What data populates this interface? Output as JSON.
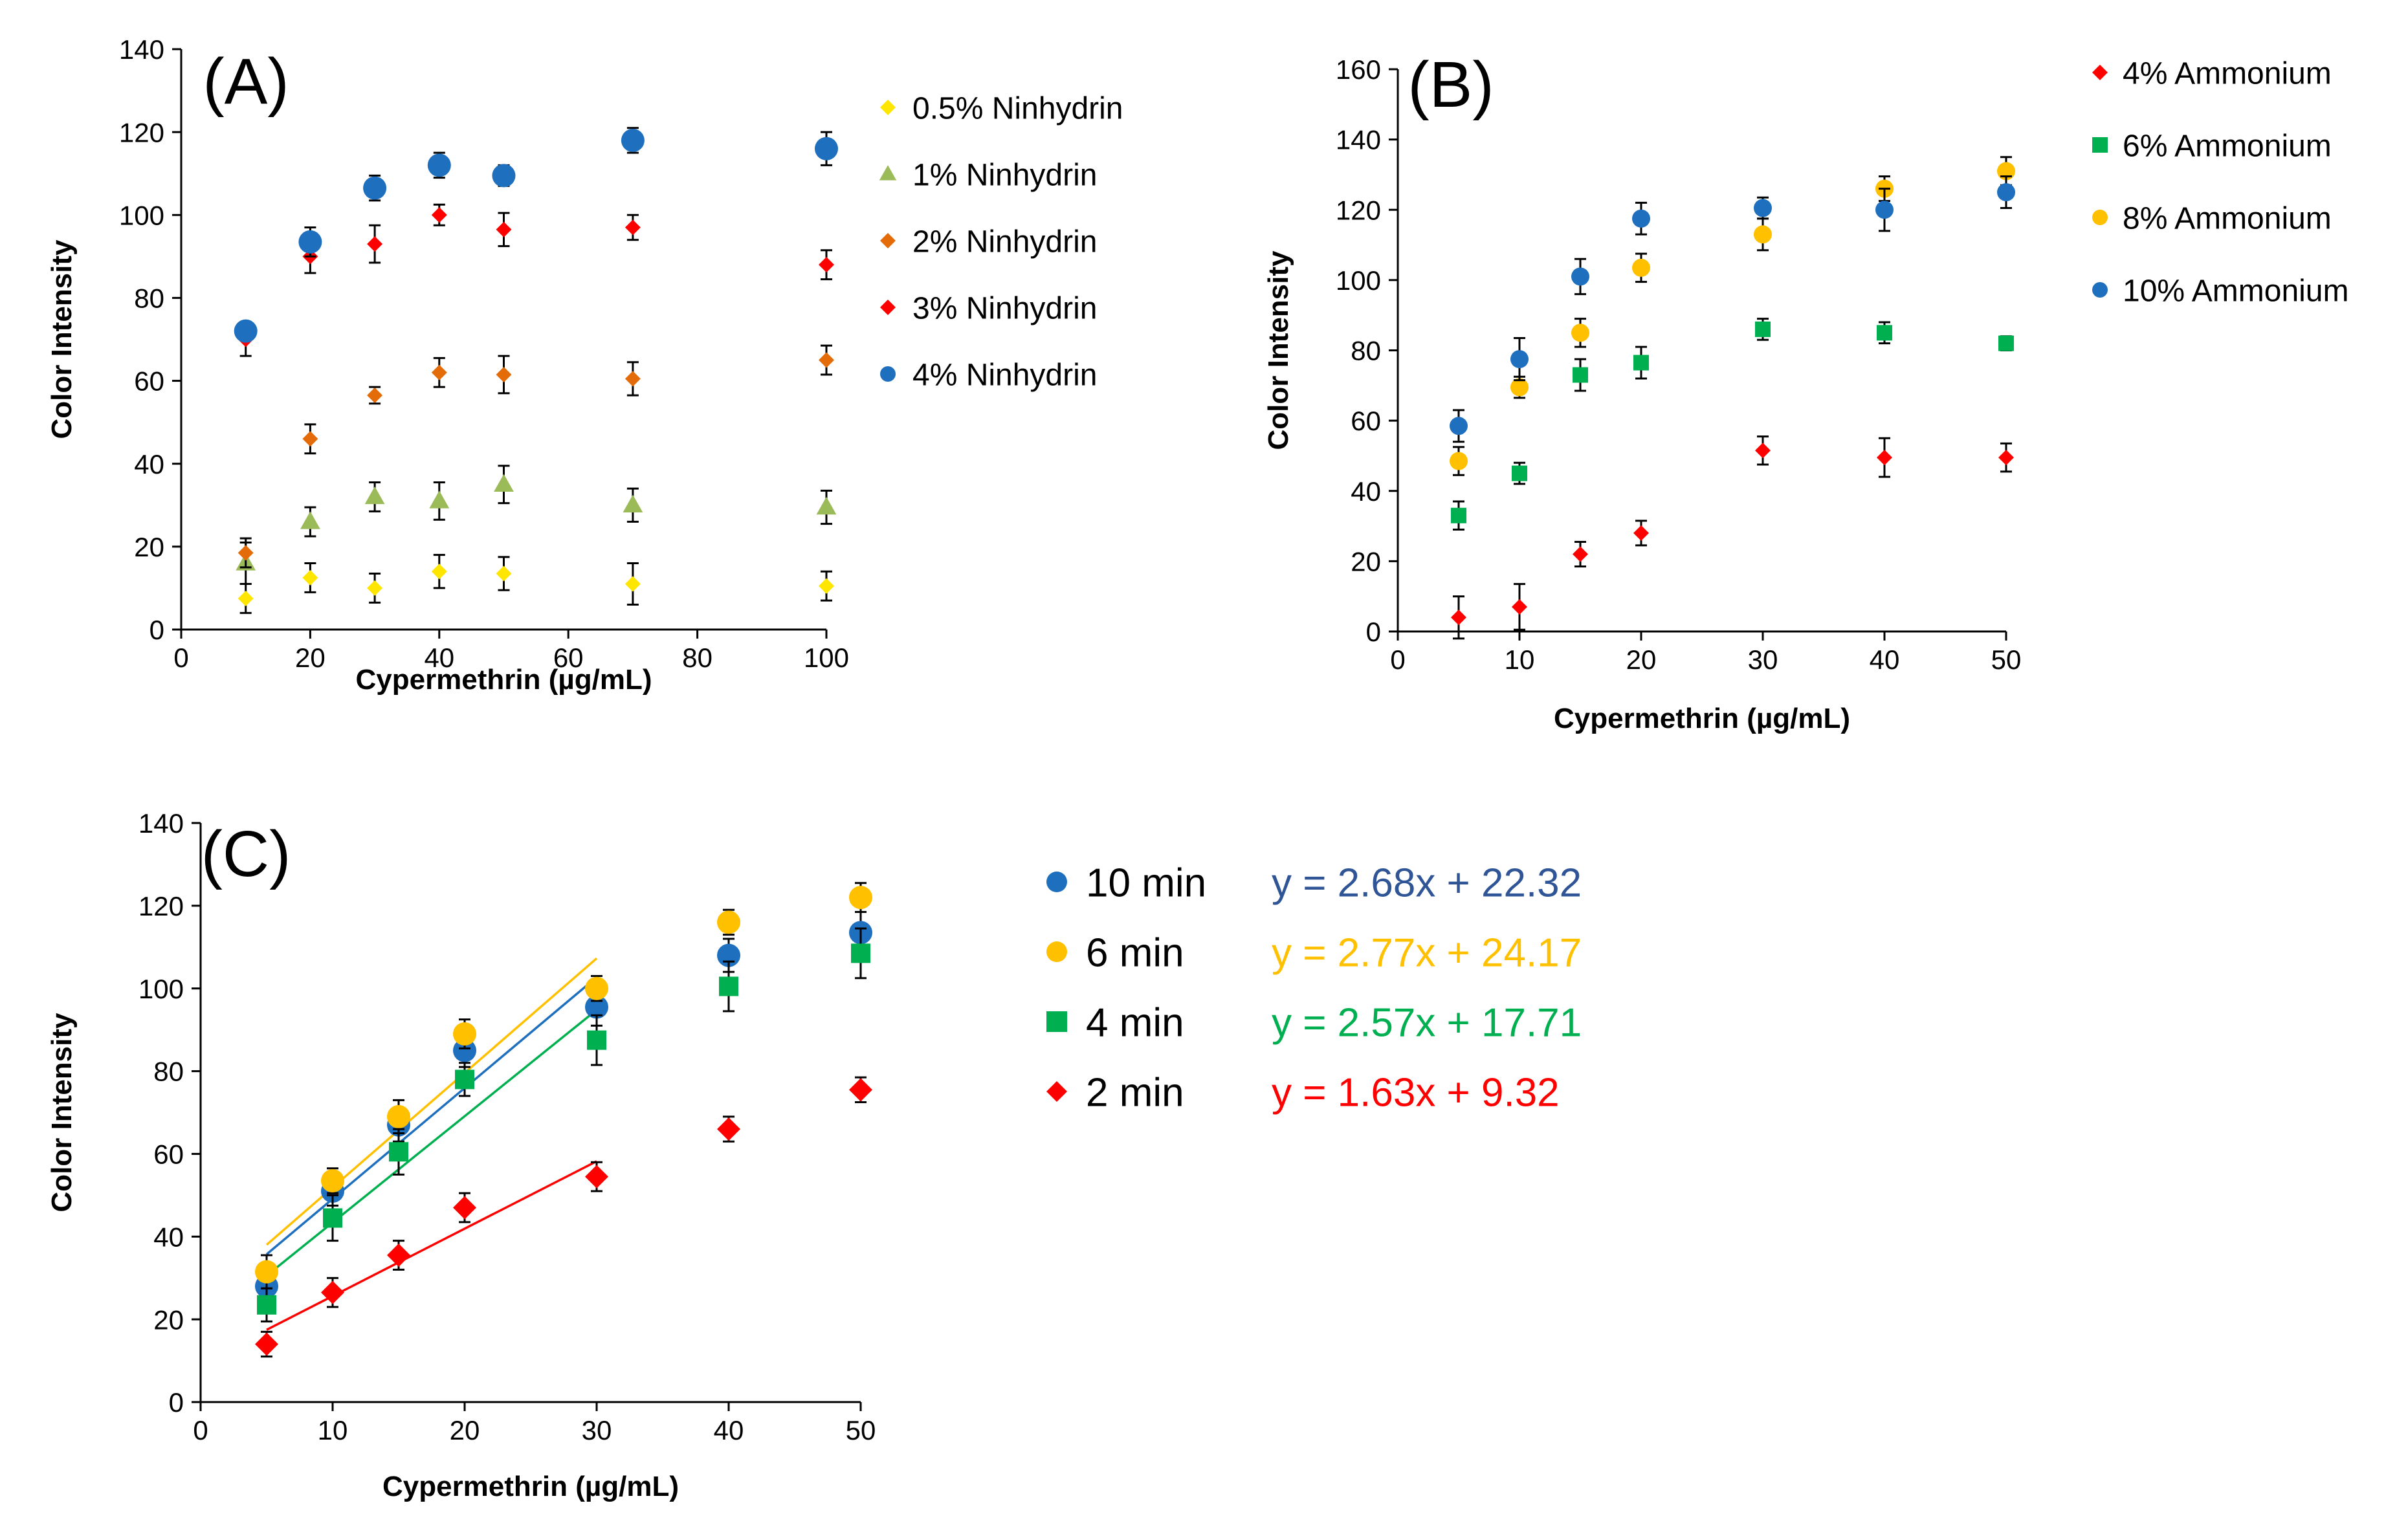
{
  "chart_data": [
    {
      "panel_label": "(A)",
      "type": "scatter",
      "xlabel": "Cypermethrin (µg/mL)",
      "ylabel": "Color Intensity",
      "xlim": [
        0,
        100
      ],
      "ylim": [
        0,
        140
      ],
      "xticks": [
        0,
        20,
        40,
        60,
        80,
        100
      ],
      "yticks": [
        0,
        20,
        40,
        60,
        80,
        100,
        120,
        140
      ],
      "grid": false,
      "legend_position": "top-right",
      "series": [
        {
          "name": "0.5% Ninhydrin",
          "marker": "diamond",
          "color": "#FFE600",
          "x": [
            10,
            20,
            30,
            40,
            50,
            70,
            100
          ],
          "y": [
            7.5,
            12.5,
            10,
            14,
            13.5,
            11,
            10.5
          ],
          "err": [
            3.5,
            3.5,
            3.5,
            4,
            4,
            5,
            3.5
          ]
        },
        {
          "name": "1% Ninhydrin",
          "marker": "triangle",
          "color": "#9BBB59",
          "x": [
            10,
            20,
            30,
            40,
            50,
            70,
            100
          ],
          "y": [
            16,
            26,
            32,
            31,
            35,
            30,
            29.5
          ],
          "err": [
            5,
            3.5,
            3.5,
            4.5,
            4.5,
            4,
            4
          ]
        },
        {
          "name": "2% Ninhydrin",
          "marker": "diamond",
          "color": "#E36C09",
          "x": [
            10,
            20,
            30,
            40,
            50,
            70,
            100
          ],
          "y": [
            18.5,
            46,
            56.5,
            62,
            61.5,
            60.5,
            65
          ],
          "err": [
            3.5,
            3.5,
            2,
            3.5,
            4.5,
            4,
            3.5
          ]
        },
        {
          "name": "3% Ninhydrin",
          "marker": "diamond",
          "color": "#FF0000",
          "x": [
            10,
            20,
            30,
            40,
            50,
            70,
            100
          ],
          "y": [
            70,
            90,
            93,
            100,
            96.5,
            97,
            88
          ],
          "err": [
            4,
            4,
            4.5,
            2.5,
            4,
            3,
            3.5
          ]
        },
        {
          "name": "4% Ninhydrin",
          "marker": "circle",
          "color": "#1F6FBF",
          "x": [
            10,
            20,
            30,
            40,
            50,
            70,
            100
          ],
          "y": [
            72,
            93.5,
            106.5,
            112,
            109.5,
            118,
            116
          ],
          "err": [
            1.5,
            3.5,
            3,
            3,
            2.5,
            3,
            4
          ]
        }
      ]
    },
    {
      "panel_label": "(B)",
      "type": "scatter",
      "xlabel": "Cypermethrin (µg/mL)",
      "ylabel": "Color Intensity",
      "xlim": [
        0,
        50
      ],
      "ylim": [
        0,
        160
      ],
      "xticks": [
        0,
        10,
        20,
        30,
        40,
        50
      ],
      "yticks": [
        0,
        20,
        40,
        60,
        80,
        100,
        120,
        140,
        160
      ],
      "grid": false,
      "legend_position": "right",
      "series": [
        {
          "name": "4% Ammonium",
          "marker": "diamond",
          "color": "#FF0000",
          "x": [
            5,
            10,
            15,
            20,
            30,
            40,
            50
          ],
          "y": [
            4,
            7,
            22,
            28,
            51.5,
            49.5,
            49.5
          ],
          "err": [
            6,
            6.5,
            3.5,
            3.5,
            4,
            5.5,
            4
          ]
        },
        {
          "name": "6% Ammonium",
          "marker": "square",
          "color": "#00B050",
          "x": [
            5,
            10,
            15,
            20,
            30,
            40,
            50
          ],
          "y": [
            33,
            45,
            73,
            76.5,
            86,
            85,
            82
          ],
          "err": [
            4,
            3,
            4.5,
            4.5,
            3,
            3,
            2
          ]
        },
        {
          "name": "8% Ammonium",
          "marker": "circle",
          "color": "#FFC000",
          "x": [
            5,
            10,
            15,
            20,
            30,
            40,
            50
          ],
          "y": [
            48.5,
            69.5,
            85,
            103.5,
            113,
            126,
            131
          ],
          "err": [
            4,
            3,
            4,
            4,
            4.5,
            3.5,
            4
          ]
        },
        {
          "name": "10% Ammonium",
          "marker": "circle",
          "color": "#1F6FBF",
          "x": [
            5,
            10,
            15,
            20,
            30,
            40,
            50
          ],
          "y": [
            58.5,
            77.5,
            101,
            117.5,
            120.5,
            120,
            125
          ],
          "err": [
            4.5,
            6,
            5,
            4.5,
            3,
            6,
            4.5
          ]
        }
      ]
    },
    {
      "panel_label": "(C)",
      "type": "scatter",
      "xlabel": "Cypermethrin (µg/mL)",
      "ylabel": "Color Intensity",
      "xlim": [
        0,
        50
      ],
      "ylim": [
        0,
        140
      ],
      "xticks": [
        0,
        10,
        20,
        30,
        40,
        50
      ],
      "yticks": [
        0,
        20,
        40,
        60,
        80,
        100,
        120,
        140
      ],
      "grid": false,
      "legend_position": "right",
      "series": [
        {
          "name": "10 min",
          "marker": "circle",
          "color": "#1F6FBF",
          "x": [
            5,
            10,
            15,
            20,
            30,
            40,
            50
          ],
          "y": [
            28,
            51,
            67,
            85,
            95.5,
            108,
            113.5
          ],
          "err": [
            3.5,
            3.5,
            4,
            4,
            4.5,
            4,
            5
          ],
          "fit": {
            "slope": 2.68,
            "intercept": 22.32,
            "x_range": [
              5,
              30
            ],
            "label": "y = 2.68x + 22.32",
            "label_color": "#2F5597"
          }
        },
        {
          "name": "6 min",
          "marker": "circle",
          "color": "#FFC000",
          "x": [
            5,
            10,
            15,
            20,
            30,
            40,
            50
          ],
          "y": [
            31.5,
            53.5,
            69,
            89,
            100,
            116,
            122
          ],
          "err": [
            4,
            3,
            4,
            3.5,
            3,
            3,
            3.5
          ],
          "fit": {
            "slope": 2.77,
            "intercept": 24.17,
            "x_range": [
              5,
              30
            ],
            "label": "y = 2.77x + 24.17",
            "label_color": "#FFC000"
          }
        },
        {
          "name": "4 min",
          "marker": "square",
          "color": "#00B050",
          "x": [
            5,
            10,
            15,
            20,
            30,
            40,
            50
          ],
          "y": [
            23.5,
            44.5,
            60.5,
            78,
            87.5,
            100.5,
            108.5
          ],
          "err": [
            4,
            5.5,
            5.5,
            4,
            6,
            6,
            6
          ],
          "fit": {
            "slope": 2.57,
            "intercept": 17.71,
            "x_range": [
              5,
              30
            ],
            "label": "y = 2.57x + 17.71",
            "label_color": "#00B050"
          }
        },
        {
          "name": "2 min",
          "marker": "diamond",
          "color": "#FF0000",
          "x": [
            5,
            10,
            15,
            20,
            30,
            40,
            50
          ],
          "y": [
            14,
            26.5,
            35.5,
            47,
            54.5,
            66,
            75.5
          ],
          "err": [
            3,
            3.5,
            3.5,
            3.5,
            3.5,
            3,
            3
          ],
          "fit": {
            "slope": 1.63,
            "intercept": 9.32,
            "x_range": [
              5,
              30
            ],
            "label": "y = 1.63x + 9.32",
            "label_color": "#FF0000"
          }
        }
      ]
    }
  ]
}
